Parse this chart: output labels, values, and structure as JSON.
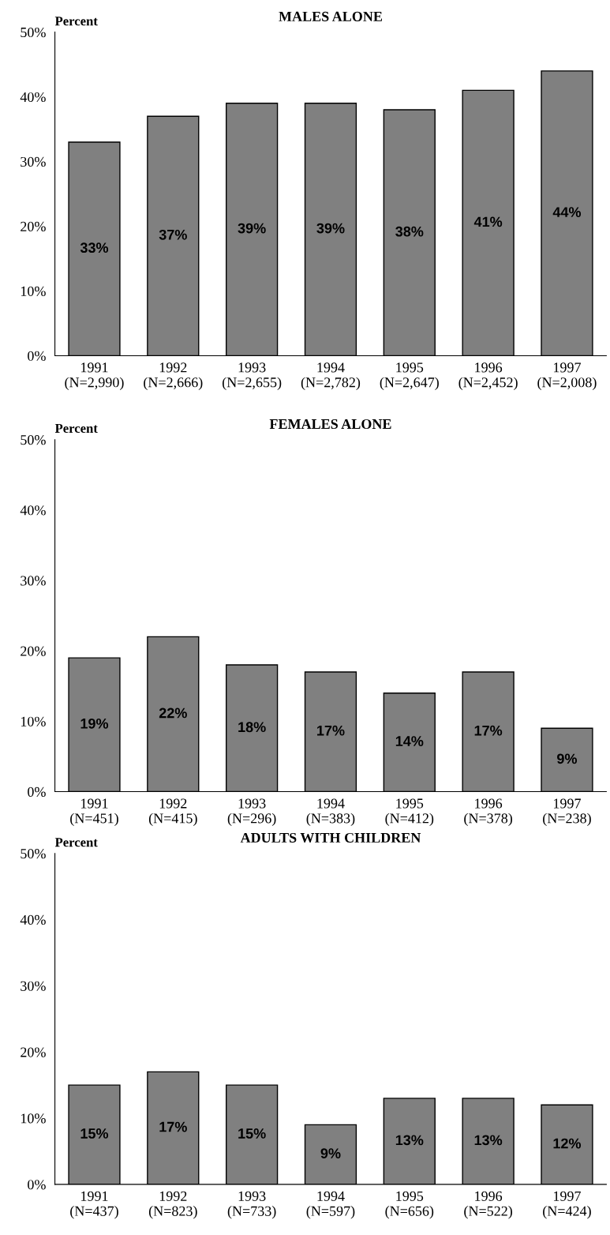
{
  "chart_data": [
    {
      "type": "bar",
      "title": "MALES ALONE",
      "ylabel": "Percent",
      "categories": [
        "1991\n(N=2,990)",
        "1992\n(N=2,666)",
        "1993\n(N=2,655)",
        "1994\n(N=2,782)",
        "1995\n(N=2,647)",
        "1996\n(N=2,452)",
        "1997\n(N=2,008)"
      ],
      "values": [
        33,
        37,
        39,
        39,
        38,
        41,
        44
      ],
      "value_labels": [
        "33%",
        "37%",
        "39%",
        "39%",
        "38%",
        "41%",
        "44%"
      ],
      "color": "#808080",
      "ylim": [
        0,
        50
      ],
      "yticks": [
        {
          "value": 0,
          "label": "0%"
        },
        {
          "value": 10,
          "label": "10%"
        },
        {
          "value": 20,
          "label": "20%"
        },
        {
          "value": 30,
          "label": "30%"
        },
        {
          "value": 40,
          "label": "40%"
        },
        {
          "value": 50,
          "label": "50%"
        }
      ],
      "grid": false,
      "legend": false
    },
    {
      "type": "bar",
      "title": "FEMALES ALONE",
      "ylabel": "Percent",
      "categories": [
        "1991\n(N=451)",
        "1992\n(N=415)",
        "1993\n(N=296)",
        "1994\n(N=383)",
        "1995\n(N=412)",
        "1996\n(N=378)",
        "1997\n(N=238)"
      ],
      "values": [
        19,
        22,
        18,
        17,
        14,
        17,
        9
      ],
      "value_labels": [
        "19%",
        "22%",
        "18%",
        "17%",
        "14%",
        "17%",
        "9%"
      ],
      "color": "#808080",
      "ylim": [
        0,
        50
      ],
      "yticks": [
        {
          "value": 0,
          "label": "0%"
        },
        {
          "value": 10,
          "label": "10%"
        },
        {
          "value": 20,
          "label": "20%"
        },
        {
          "value": 30,
          "label": "30%"
        },
        {
          "value": 40,
          "label": "40%"
        },
        {
          "value": 50,
          "label": "50%"
        }
      ],
      "grid": false,
      "legend": false
    },
    {
      "type": "bar",
      "title": "ADULTS WITH CHILDREN",
      "ylabel": "Percent",
      "categories": [
        "1991\n(N=437)",
        "1992\n(N=823)",
        "1993\n(N=733)",
        "1994\n(N=597)",
        "1995\n(N=656)",
        "1996\n(N=522)",
        "1997\n(N=424)"
      ],
      "values": [
        15,
        17,
        15,
        9,
        13,
        13,
        12
      ],
      "value_labels": [
        "15%",
        "17%",
        "15%",
        "9%",
        "13%",
        "13%",
        "12%"
      ],
      "color": "#808080",
      "ylim": [
        0,
        50
      ],
      "yticks": [
        {
          "value": 0,
          "label": "0%"
        },
        {
          "value": 10,
          "label": "10%"
        },
        {
          "value": 20,
          "label": "20%"
        },
        {
          "value": 30,
          "label": "30%"
        },
        {
          "value": 40,
          "label": "40%"
        },
        {
          "value": 50,
          "label": "50%"
        }
      ],
      "grid": false,
      "legend": false
    }
  ]
}
